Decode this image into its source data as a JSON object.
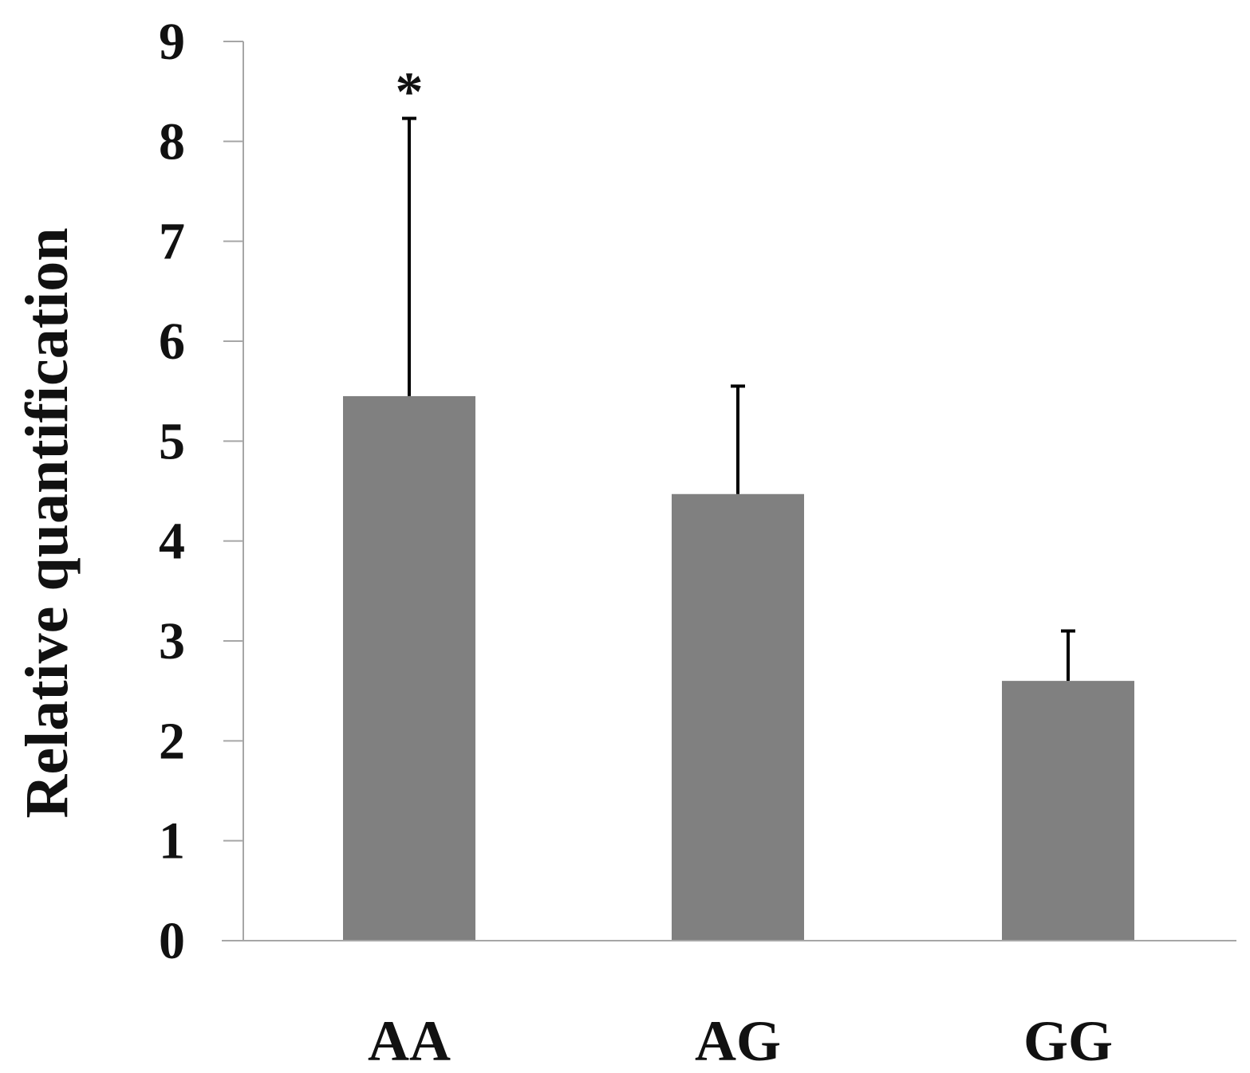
{
  "chart_data": {
    "type": "bar",
    "categories": [
      "AA",
      "AG",
      "GG"
    ],
    "values": [
      5.45,
      4.47,
      2.6
    ],
    "error_upper": [
      8.23,
      5.55,
      3.1
    ],
    "ylabel": "Relative quantification",
    "xlabel": "",
    "title": "",
    "ylim": [
      0,
      9
    ],
    "yticks": [
      "0",
      "1",
      "2",
      "3",
      "4",
      "5",
      "6",
      "7",
      "8",
      "9"
    ],
    "grid": false,
    "bar_color": "#808080",
    "axis_color": "#a6a6a6",
    "annotations": [
      {
        "category": "AA",
        "text": "*"
      }
    ]
  }
}
